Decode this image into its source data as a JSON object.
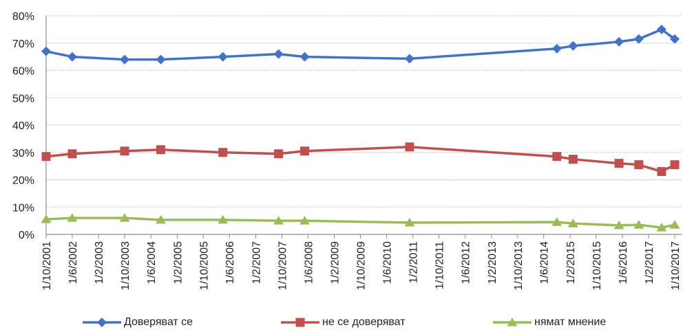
{
  "chart_data": {
    "type": "line",
    "x": [
      "1/10/2001",
      "1/6/2002",
      "1/10/2003",
      "1/9/2004",
      "1/4/2006",
      "1/9/2007",
      "1/5/2008",
      "1/1/2011",
      "1/10/2014",
      "1/3/2015",
      "1/5/2016",
      "1/11/2016",
      "1/6/2017",
      "1/10/2017"
    ],
    "x_tick_labels": [
      "1/10/2001",
      "1/6/2002",
      "1/2/2003",
      "1/10/2003",
      "1/6/2004",
      "1/2/2005",
      "1/10/2005",
      "1/6/2006",
      "1/2/2007",
      "1/10/2007",
      "1/6/2008",
      "1/2/2009",
      "1/10/2009",
      "1/6/2010",
      "1/2/2011",
      "1/10/2011",
      "1/6/2012",
      "1/2/2013",
      "1/10/2013",
      "1/6/2014",
      "1/2/2015",
      "1/10/2015",
      "1/6/2016",
      "1/2/2017",
      "1/10/2017"
    ],
    "y_tick_labels": [
      "0%",
      "10%",
      "20%",
      "30%",
      "40%",
      "50%",
      "60%",
      "70%",
      "80%"
    ],
    "ylim": [
      0,
      80
    ],
    "y_unit": "%",
    "grid": "horizontal dotted",
    "legend_position": "bottom",
    "series": [
      {
        "name": "Доверяват се",
        "color": "#4472c4",
        "marker": "diamond",
        "values": [
          67,
          65,
          64,
          64,
          65,
          66,
          65,
          64.3,
          68,
          69,
          70.5,
          71.5,
          75,
          71.5
        ]
      },
      {
        "name": "не се доверяват",
        "color": "#c0504d",
        "marker": "square",
        "values": [
          28.5,
          29.5,
          30.5,
          31,
          30,
          29.5,
          30.5,
          32,
          28.5,
          27.5,
          26,
          25.5,
          23,
          25.5
        ]
      },
      {
        "name": "нямат мнение",
        "color": "#9bbb59",
        "marker": "triangle",
        "values": [
          5.5,
          6,
          6,
          5.3,
          5.3,
          5,
          5,
          4.3,
          4.5,
          4,
          3.3,
          3.5,
          2.5,
          3.5
        ]
      }
    ]
  }
}
